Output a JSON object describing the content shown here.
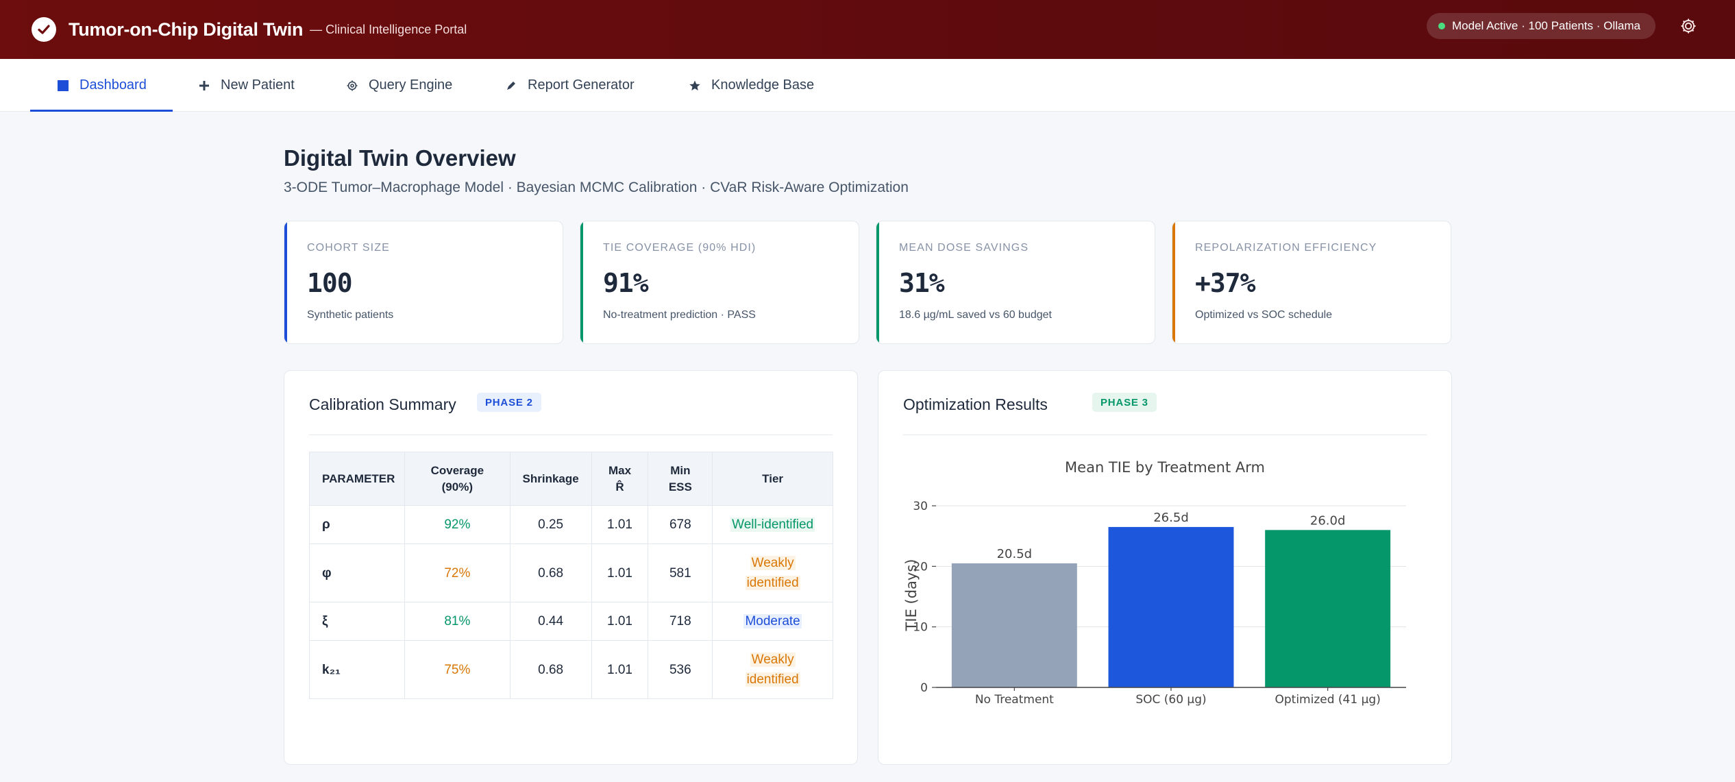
{
  "header": {
    "title": "Tumor-on-Chip Digital Twin",
    "subtitle": "— Clinical Intelligence Portal",
    "status": "Model Active · 100 Patients · Ollama",
    "icons": {
      "brand": "check-circle-icon",
      "settings": "gear-icon"
    }
  },
  "nav": {
    "tabs": [
      {
        "label": "Dashboard",
        "icon": "square-icon",
        "active": true
      },
      {
        "label": "New Patient",
        "icon": "plus-icon",
        "active": false
      },
      {
        "label": "Query Engine",
        "icon": "gear-icon",
        "active": false
      },
      {
        "label": "Report Generator",
        "icon": "pencil-icon",
        "active": false
      },
      {
        "label": "Knowledge Base",
        "icon": "star-icon",
        "active": false
      }
    ]
  },
  "page": {
    "title": "Digital Twin Overview",
    "subtitle": "3-ODE Tumor–Macrophage Model · Bayesian MCMC Calibration · CVaR Risk-Aware Optimization"
  },
  "kpis": [
    {
      "label": "Cohort Size",
      "value": "100",
      "note": "Synthetic patients",
      "accent": "#1d4ed8"
    },
    {
      "label": "TIE Coverage (90% HDI)",
      "value": "91%",
      "note": "No-treatment prediction · PASS",
      "accent": "#059669"
    },
    {
      "label": "Mean Dose Savings",
      "value": "31%",
      "note": "18.6 µg/mL saved vs 60 budget",
      "accent": "#059669"
    },
    {
      "label": "Repolarization Efficiency",
      "value": "+37%",
      "note": "Optimized vs SOC schedule",
      "accent": "#d97706"
    }
  ],
  "calibration": {
    "title": "Calibration Summary",
    "phase": "PHASE 2",
    "headers": {
      "parameter": "PARAMETER",
      "coverage_1": "Coverage",
      "coverage_2": "(90%)",
      "shrinkage": "Shrinkage",
      "rhat_1": "Max",
      "rhat_2": "R̂",
      "ess_1": "Min",
      "ess_2": "ESS",
      "tier": "Tier"
    },
    "rows": [
      {
        "param": "ρ",
        "coverage": "92%",
        "shrinkage": "0.25",
        "rhat": "1.01",
        "ess": "678",
        "tier_1": "Well-identified",
        "tier_2": ""
      },
      {
        "param": "φ",
        "coverage": "72%",
        "shrinkage": "0.68",
        "rhat": "1.01",
        "ess": "581",
        "tier_1": "Weakly",
        "tier_2": "identified"
      },
      {
        "param": "ξ",
        "coverage": "81%",
        "shrinkage": "0.44",
        "rhat": "1.01",
        "ess": "718",
        "tier_1": "Moderate",
        "tier_2": ""
      },
      {
        "param": "k₂₁",
        "coverage": "75%",
        "shrinkage": "0.68",
        "rhat": "1.01",
        "ess": "536",
        "tier_1": "Weakly",
        "tier_2": "identified"
      }
    ]
  },
  "optimization": {
    "title": "Optimization Results",
    "phase": "PHASE 3"
  },
  "chart_data": {
    "type": "bar",
    "title": "Mean TIE by Treatment Arm",
    "xlabel": "",
    "ylabel": "TIE (days)",
    "categories": [
      "No Treatment",
      "SOC (60 µg)",
      "Optimized (41 µg)"
    ],
    "values": [
      20.5,
      26.5,
      26.0
    ],
    "data_labels": [
      "20.5d",
      "26.5d",
      "26.0d"
    ],
    "colors": [
      "#94a3b8",
      "#1d57dc",
      "#059669"
    ],
    "ylim": [
      0,
      30
    ],
    "yticks": [
      0,
      10,
      20,
      30
    ],
    "grid": true,
    "legend": "none"
  }
}
